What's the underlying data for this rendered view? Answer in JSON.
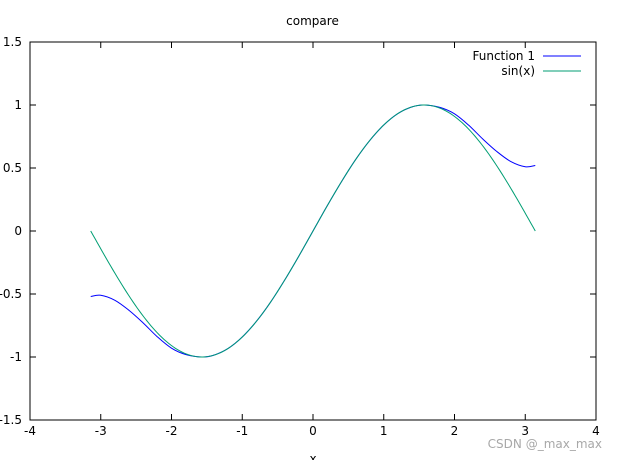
{
  "chart_data": {
    "type": "line",
    "title": "compare",
    "xlabel": "x",
    "ylabel": "",
    "xlim": [
      -4,
      4
    ],
    "ylim": [
      -1.5,
      1.5
    ],
    "xticks": [
      "-4",
      "-3",
      "-2",
      "-1",
      "0",
      "1",
      "2",
      "3",
      "4"
    ],
    "yticks": [
      "-1.5",
      "-1",
      "-0.5",
      "0",
      "0.5",
      "1",
      "1.5"
    ],
    "grid": false,
    "legend_position": "top-right",
    "series": [
      {
        "name": "Function 1",
        "color": "#0000ff",
        "x": [
          -3.1416,
          -3.0,
          -2.8,
          -2.6,
          -2.4,
          -2.2,
          -2.0,
          -1.8,
          -1.5708,
          -1.4,
          -1.2,
          -1.0,
          -0.8,
          -0.6,
          -0.4,
          -0.2,
          0,
          0.2,
          0.4,
          0.6,
          0.8,
          1.0,
          1.2,
          1.4,
          1.5708,
          1.8,
          2.0,
          2.2,
          2.4,
          2.6,
          2.8,
          3.0,
          3.1416
        ],
        "y": [
          -0.52,
          -0.51,
          -0.55,
          -0.63,
          -0.73,
          -0.84,
          -0.93,
          -0.98,
          -1.0,
          -0.985,
          -0.932,
          -0.841,
          -0.717,
          -0.565,
          -0.389,
          -0.199,
          0,
          0.199,
          0.389,
          0.565,
          0.717,
          0.841,
          0.932,
          0.985,
          1.0,
          0.98,
          0.93,
          0.84,
          0.73,
          0.63,
          0.55,
          0.51,
          0.52
        ]
      },
      {
        "name": "sin(x)",
        "color": "#009e73",
        "function": "sin",
        "x_range": [
          -3.1416,
          3.1416
        ]
      }
    ]
  },
  "watermark": "CSDN @_max_max"
}
